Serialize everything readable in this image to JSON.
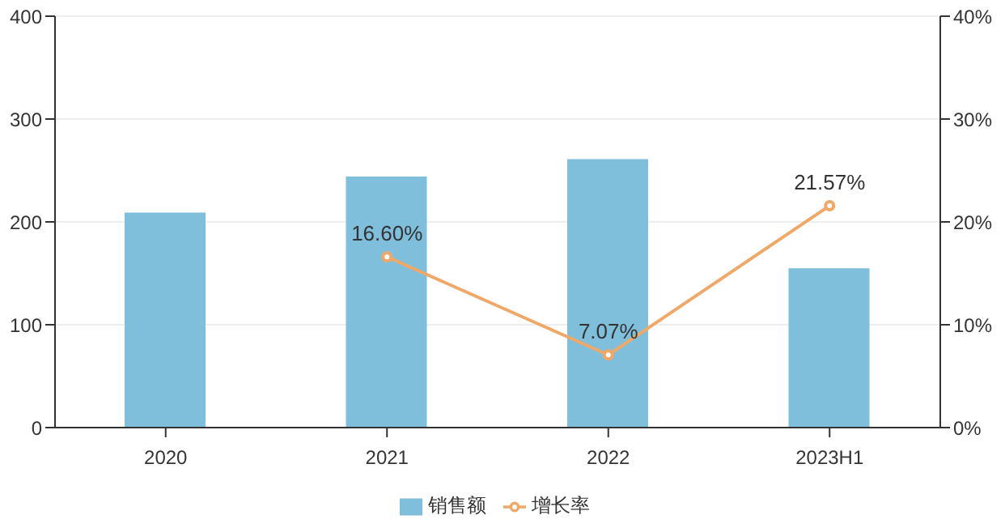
{
  "chart_data": {
    "type": "bar",
    "categories": [
      "2020",
      "2021",
      "2022",
      "2023H1"
    ],
    "series": [
      {
        "name": "销售额",
        "color": "#7fbfdc",
        "values": [
          209,
          244,
          261,
          155
        ]
      },
      {
        "name": "增长率",
        "type": "line",
        "axis": "y2",
        "color": "#f0a868",
        "values": [
          null,
          16.6,
          7.07,
          21.57
        ],
        "value_labels": [
          null,
          "16.60%",
          "7.07%",
          "21.57%"
        ],
        "marker": "circle"
      }
    ],
    "ylim": [
      0,
      400
    ],
    "yticks": [
      0,
      100,
      200,
      300,
      400
    ],
    "y2lim": [
      0,
      40
    ],
    "y2ticks": [
      {
        "value": 0,
        "label": "0%"
      },
      {
        "value": 10,
        "label": "10%"
      },
      {
        "value": 20,
        "label": "20%"
      },
      {
        "value": 30,
        "label": "30%"
      },
      {
        "value": 40,
        "label": "40%"
      }
    ],
    "grid": "y",
    "legend": "bottom"
  }
}
